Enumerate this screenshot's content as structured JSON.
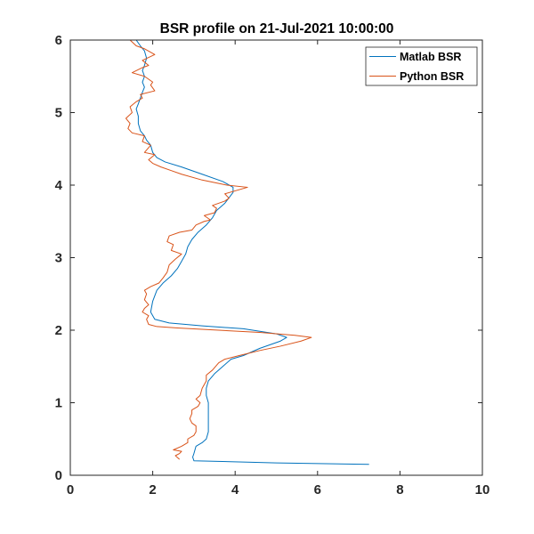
{
  "chart_data": {
    "type": "line",
    "title": "BSR profile on 21-Jul-2021 10:00:00",
    "xlabel": "",
    "ylabel": "",
    "xlim": [
      0,
      10
    ],
    "ylim": [
      0,
      6
    ],
    "x_ticks": [
      "0",
      "2",
      "4",
      "6",
      "8",
      "10"
    ],
    "y_ticks": [
      "0",
      "1",
      "2",
      "3",
      "4",
      "5",
      "6"
    ],
    "grid": false,
    "box": true,
    "legend_position": "top-right",
    "series": [
      {
        "name": "Matlab BSR",
        "color": "#0072BD",
        "points": [
          [
            7.25,
            0.15
          ],
          [
            5.0,
            0.17
          ],
          [
            3.0,
            0.2
          ],
          [
            2.97,
            0.25
          ],
          [
            3.0,
            0.3
          ],
          [
            3.05,
            0.4
          ],
          [
            3.2,
            0.45
          ],
          [
            3.3,
            0.5
          ],
          [
            3.35,
            0.6
          ],
          [
            3.35,
            0.7
          ],
          [
            3.35,
            0.8
          ],
          [
            3.35,
            0.9
          ],
          [
            3.35,
            1.0
          ],
          [
            3.3,
            1.1
          ],
          [
            3.3,
            1.2
          ],
          [
            3.35,
            1.3
          ],
          [
            3.5,
            1.4
          ],
          [
            3.7,
            1.5
          ],
          [
            3.9,
            1.6
          ],
          [
            4.2,
            1.65
          ],
          [
            4.6,
            1.75
          ],
          [
            5.1,
            1.85
          ],
          [
            5.25,
            1.9
          ],
          [
            5.0,
            1.95
          ],
          [
            4.2,
            2.02
          ],
          [
            3.2,
            2.06
          ],
          [
            2.4,
            2.1
          ],
          [
            2.05,
            2.15
          ],
          [
            1.95,
            2.25
          ],
          [
            2.0,
            2.4
          ],
          [
            2.1,
            2.55
          ],
          [
            2.25,
            2.65
          ],
          [
            2.45,
            2.75
          ],
          [
            2.6,
            2.85
          ],
          [
            2.7,
            2.95
          ],
          [
            2.8,
            3.05
          ],
          [
            2.85,
            3.15
          ],
          [
            2.95,
            3.25
          ],
          [
            3.1,
            3.35
          ],
          [
            3.3,
            3.45
          ],
          [
            3.45,
            3.55
          ],
          [
            3.55,
            3.65
          ],
          [
            3.75,
            3.75
          ],
          [
            3.95,
            3.9
          ],
          [
            3.95,
            3.97
          ],
          [
            3.7,
            4.05
          ],
          [
            3.2,
            4.15
          ],
          [
            2.7,
            4.25
          ],
          [
            2.3,
            4.32
          ],
          [
            2.1,
            4.38
          ],
          [
            2.0,
            4.45
          ],
          [
            1.95,
            4.55
          ],
          [
            1.85,
            4.62
          ],
          [
            1.8,
            4.68
          ],
          [
            1.7,
            4.75
          ],
          [
            1.65,
            4.85
          ],
          [
            1.65,
            4.95
          ],
          [
            1.6,
            5.05
          ],
          [
            1.65,
            5.12
          ],
          [
            1.7,
            5.2
          ],
          [
            1.75,
            5.28
          ],
          [
            1.8,
            5.35
          ],
          [
            1.75,
            5.42
          ],
          [
            1.8,
            5.5
          ],
          [
            1.75,
            5.58
          ],
          [
            1.8,
            5.65
          ],
          [
            1.85,
            5.75
          ],
          [
            1.8,
            5.85
          ],
          [
            1.7,
            5.92
          ],
          [
            1.6,
            6.0
          ]
        ]
      },
      {
        "name": "Python BSR",
        "color": "#D95319",
        "points": [
          [
            2.65,
            0.22
          ],
          [
            2.55,
            0.27
          ],
          [
            2.65,
            0.3
          ],
          [
            2.7,
            0.33
          ],
          [
            2.5,
            0.35
          ],
          [
            2.7,
            0.4
          ],
          [
            2.85,
            0.45
          ],
          [
            2.85,
            0.5
          ],
          [
            3.0,
            0.55
          ],
          [
            3.05,
            0.6
          ],
          [
            3.05,
            0.68
          ],
          [
            2.95,
            0.72
          ],
          [
            2.9,
            0.78
          ],
          [
            2.95,
            0.85
          ],
          [
            2.95,
            0.9
          ],
          [
            3.1,
            0.95
          ],
          [
            3.15,
            1.0
          ],
          [
            3.05,
            1.05
          ],
          [
            3.15,
            1.1
          ],
          [
            3.2,
            1.2
          ],
          [
            3.3,
            1.3
          ],
          [
            3.3,
            1.38
          ],
          [
            3.45,
            1.45
          ],
          [
            3.6,
            1.55
          ],
          [
            3.75,
            1.6
          ],
          [
            4.1,
            1.65
          ],
          [
            4.6,
            1.72
          ],
          [
            5.1,
            1.78
          ],
          [
            5.6,
            1.85
          ],
          [
            5.85,
            1.9
          ],
          [
            5.45,
            1.93
          ],
          [
            4.6,
            1.97
          ],
          [
            3.6,
            2.0
          ],
          [
            2.6,
            2.03
          ],
          [
            2.1,
            2.05
          ],
          [
            1.9,
            2.08
          ],
          [
            1.85,
            2.15
          ],
          [
            1.9,
            2.2
          ],
          [
            1.75,
            2.25
          ],
          [
            1.8,
            2.3
          ],
          [
            1.9,
            2.35
          ],
          [
            1.8,
            2.42
          ],
          [
            1.85,
            2.5
          ],
          [
            1.8,
            2.55
          ],
          [
            1.95,
            2.6
          ],
          [
            2.15,
            2.65
          ],
          [
            2.25,
            2.72
          ],
          [
            2.35,
            2.8
          ],
          [
            2.4,
            2.9
          ],
          [
            2.55,
            2.98
          ],
          [
            2.7,
            3.05
          ],
          [
            2.45,
            3.1
          ],
          [
            2.5,
            3.18
          ],
          [
            2.35,
            3.22
          ],
          [
            2.4,
            3.3
          ],
          [
            2.65,
            3.35
          ],
          [
            2.95,
            3.38
          ],
          [
            3.05,
            3.45
          ],
          [
            3.25,
            3.5
          ],
          [
            3.4,
            3.52
          ],
          [
            3.25,
            3.58
          ],
          [
            3.5,
            3.62
          ],
          [
            3.55,
            3.68
          ],
          [
            3.45,
            3.72
          ],
          [
            3.75,
            3.78
          ],
          [
            3.85,
            3.82
          ],
          [
            3.75,
            3.88
          ],
          [
            4.3,
            3.97
          ],
          [
            3.8,
            4.0
          ],
          [
            3.2,
            4.07
          ],
          [
            2.7,
            4.15
          ],
          [
            2.45,
            4.2
          ],
          [
            2.2,
            4.25
          ],
          [
            2.0,
            4.3
          ],
          [
            1.9,
            4.35
          ],
          [
            2.05,
            4.42
          ],
          [
            1.8,
            4.45
          ],
          [
            1.95,
            4.55
          ],
          [
            1.75,
            4.6
          ],
          [
            1.8,
            4.68
          ],
          [
            1.5,
            4.72
          ],
          [
            1.4,
            4.78
          ],
          [
            1.45,
            4.85
          ],
          [
            1.35,
            4.92
          ],
          [
            1.5,
            5.0
          ],
          [
            1.45,
            5.08
          ],
          [
            1.6,
            5.15
          ],
          [
            1.75,
            5.2
          ],
          [
            1.7,
            5.25
          ],
          [
            2.05,
            5.3
          ],
          [
            1.95,
            5.38
          ],
          [
            2.0,
            5.42
          ],
          [
            1.8,
            5.5
          ],
          [
            1.5,
            5.55
          ],
          [
            1.75,
            5.62
          ],
          [
            1.9,
            5.65
          ],
          [
            1.75,
            5.72
          ],
          [
            2.05,
            5.8
          ],
          [
            1.8,
            5.88
          ],
          [
            1.6,
            5.92
          ],
          [
            1.45,
            6.0
          ]
        ]
      }
    ]
  }
}
